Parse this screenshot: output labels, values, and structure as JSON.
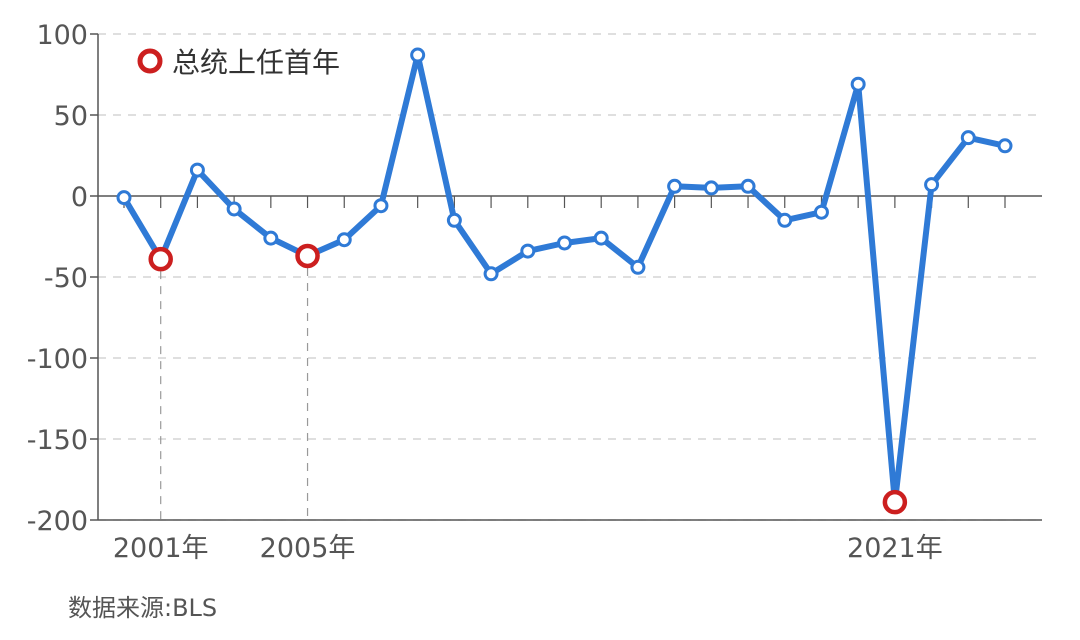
{
  "chart_data": {
    "type": "line",
    "legend": {
      "label": "总统上任首年",
      "position": "top-left"
    },
    "source": "数据来源:BLS",
    "ylim": [
      -200,
      100
    ],
    "yticks": [
      "100",
      "50",
      "0",
      "-50",
      "-100",
      "-150",
      "-200"
    ],
    "ytick_values": [
      100,
      50,
      0,
      -50,
      -100,
      -150,
      -200
    ],
    "x": [
      2000,
      2001,
      2002,
      2003,
      2004,
      2005,
      2006,
      2007,
      2008,
      2009,
      2010,
      2011,
      2012,
      2013,
      2014,
      2015,
      2016,
      2017,
      2018,
      2019,
      2020,
      2021,
      2022,
      2023,
      2024
    ],
    "xlim": [
      2000,
      2024
    ],
    "xtick_labels": [
      {
        "x": 2001,
        "label": "2001年"
      },
      {
        "x": 2005,
        "label": "2005年"
      },
      {
        "x": 2021,
        "label": "2021年"
      }
    ],
    "series": [
      {
        "values": [
          -1,
          -39,
          16,
          -8,
          -26,
          -37,
          -27,
          -6,
          87,
          -15,
          -48,
          -34,
          -29,
          -26,
          -44,
          6,
          5,
          6,
          -15,
          -10,
          69,
          -189,
          7,
          36,
          31
        ]
      }
    ],
    "highlighted_x": [
      2001,
      2005,
      2021
    ],
    "grid": "horizontal-dashed",
    "colors": {
      "line": "#2f7ad6",
      "highlight": "#cc1f1f",
      "grid": "#cccccc",
      "axis": "#555555",
      "marker_fill": "#ffffff"
    }
  }
}
